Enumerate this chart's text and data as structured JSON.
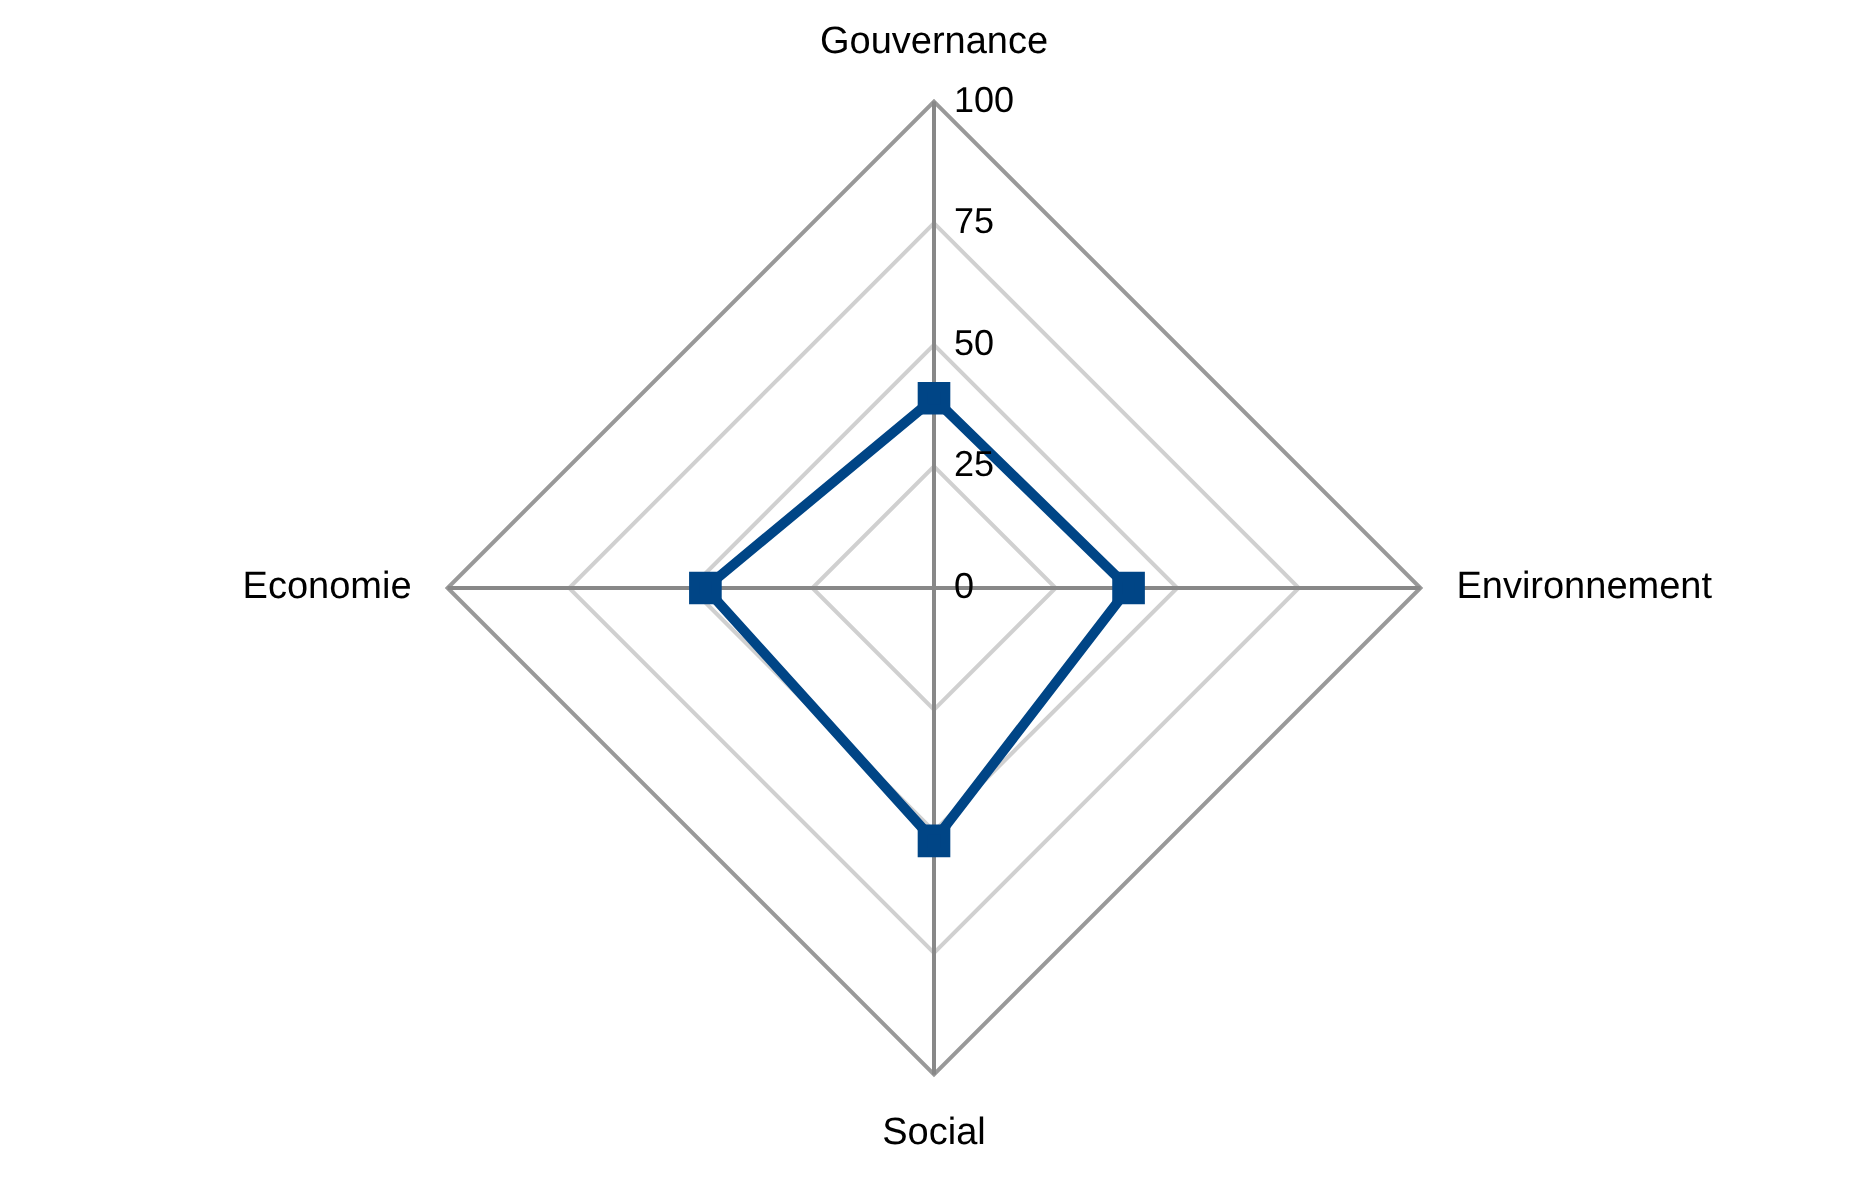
{
  "chart_data": {
    "type": "radar",
    "categories": [
      "Gouvernance",
      "Environnement",
      "Social",
      "Economie"
    ],
    "series": [
      {
        "color": "#004586",
        "values": [
          39,
          40,
          52,
          47
        ]
      }
    ],
    "ylim": [
      0,
      100
    ],
    "yticks": [
      0,
      25,
      50,
      75,
      100
    ],
    "grid": true,
    "marker": "square",
    "legend": false
  }
}
